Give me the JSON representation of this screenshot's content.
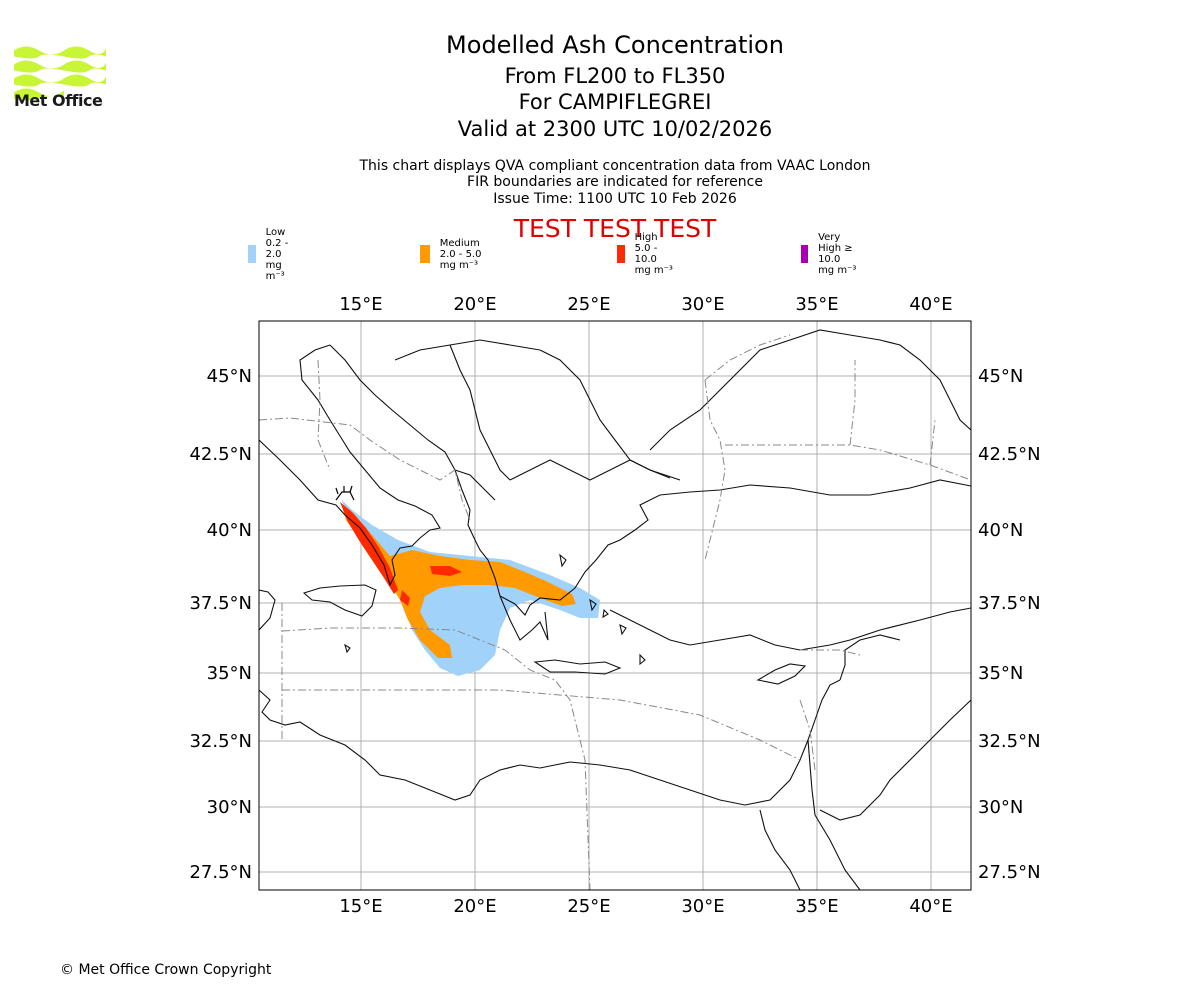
{
  "logo": {
    "text": "Met Office",
    "color": "#c8f536"
  },
  "header": {
    "title": "Modelled Ash Concentration",
    "levels": "From FL200 to FL350",
    "volcano": "For CAMPIFLEGREI",
    "valid": "Valid at 2300 UTC 10/02/2026"
  },
  "info": {
    "line1": "This chart displays QVA compliant concentration data from VAAC London",
    "line2": "FIR boundaries are indicated for reference",
    "issue": "Issue Time: 1100 UTC 10 Feb 2026"
  },
  "test_banner": "TEST TEST TEST",
  "legend": [
    {
      "label": "Low 0.2 - 2.0 mg m⁻³",
      "color": "#a0d2fa"
    },
    {
      "label": "Medium 2.0 - 5.0 mg m⁻³",
      "color": "#ff9a00"
    },
    {
      "label": "High 5.0 - 10.0 mg m⁻³",
      "color": "#ff2a00"
    },
    {
      "label": "Very High ≥ 10.0 mg m⁻³",
      "color": "#a800b0"
    }
  ],
  "map": {
    "lon_ticks": [
      "15°E",
      "20°E",
      "25°E",
      "30°E",
      "35°E",
      "40°E"
    ],
    "lat_ticks": [
      "45°N",
      "42.5°N",
      "40°N",
      "37.5°N",
      "35°N",
      "32.5°N",
      "30°N",
      "27.5°N"
    ]
  },
  "copyright": "© Met Office Crown Copyright"
}
